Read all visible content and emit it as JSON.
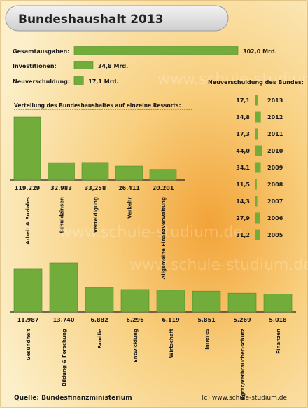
{
  "header": {
    "title": "Bundeshaushalt 2013"
  },
  "chart_data": [
    {
      "type": "bar",
      "orientation": "horizontal",
      "categories": [
        "Gesamtausgaben:",
        "Investitionen:",
        "Neuverschuldung:"
      ],
      "values": [
        302.0,
        34.8,
        17.1
      ],
      "value_labels": [
        "302,0 Mrd.",
        "34,8 Mrd.",
        "17,1 Mrd."
      ],
      "xlim": [
        0,
        302.0
      ]
    },
    {
      "type": "bar",
      "orientation": "horizontal",
      "title": "Neuverschuldung des Bundes:",
      "categories": [
        "2013",
        "2012",
        "2011",
        "2010",
        "2009",
        "2008",
        "2007",
        "2006",
        "2005"
      ],
      "values": [
        17.1,
        34.8,
        17.3,
        44.0,
        34.1,
        11.5,
        14.3,
        27.9,
        31.2
      ],
      "value_labels": [
        "17,1",
        "34,8",
        "17,3",
        "44,0",
        "34,1",
        "11,5",
        "14,3",
        "27,9",
        "31,2"
      ],
      "xlim": [
        0,
        44.0
      ]
    },
    {
      "type": "bar",
      "title": "Verteilung des Bundeshaushaltes auf einzelne Ressorts:",
      "categories": [
        "Arbeit & Soziales",
        "Schuldzinsen",
        "Verteidigung",
        "Verkehr",
        "Allgemeine Finanzverwaltung"
      ],
      "values": [
        119229,
        32983,
        33258,
        26411,
        20201
      ],
      "value_labels": [
        "119.229",
        "32.983",
        "33,258",
        "26.411",
        "20.201"
      ],
      "ylim": [
        0,
        119229
      ]
    },
    {
      "type": "bar",
      "categories": [
        "Gesundheit",
        "Bildung & Forschung",
        "Familie",
        "Entwicklung",
        "Wirtschaft",
        "Inneres",
        "Agrar/Verbraucher-schutz",
        "Finanzen"
      ],
      "values": [
        11987,
        13740,
        6882,
        6296,
        6119,
        5851,
        5269,
        5018
      ],
      "value_labels": [
        "11.987",
        "13.740",
        "6.882",
        "6.296",
        "6.119",
        "5.851",
        "5.269",
        "5.018"
      ],
      "ylim": [
        0,
        13740
      ]
    }
  ],
  "footer": {
    "source": "Quelle: Bundesfinanzministerium",
    "copyright": "(c) www.schule-studium.de"
  },
  "watermark": "www.schule-studium.de",
  "colors": {
    "bar": "#72ad3c",
    "bar_dark": "#4f8a24",
    "header_bg": "#e2e2e2",
    "background_center": "#f2a338",
    "background_edge": "#fbe9b8",
    "text": "#1a1a1a"
  }
}
